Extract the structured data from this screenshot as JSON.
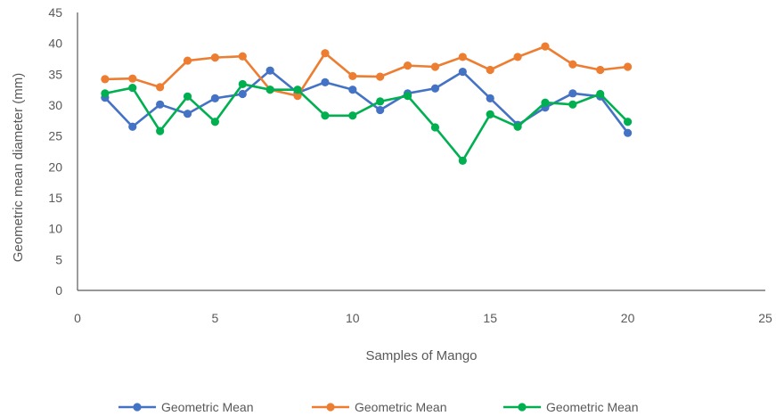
{
  "chart_data": {
    "type": "line",
    "title": "",
    "xlabel": "Samples of Mango",
    "ylabel": "Geometric mean diameter (mm)",
    "xlim": [
      0,
      25
    ],
    "ylim": [
      0,
      45
    ],
    "x_ticks": [
      0,
      5,
      10,
      15,
      20,
      25
    ],
    "y_ticks": [
      0,
      5,
      10,
      15,
      20,
      25,
      30,
      35,
      40,
      45
    ],
    "grid": false,
    "legend_position": "bottom",
    "x": [
      1,
      2,
      3,
      4,
      5,
      6,
      7,
      8,
      9,
      10,
      11,
      12,
      13,
      14,
      15,
      16,
      17,
      18,
      19,
      20
    ],
    "series": [
      {
        "name": "Geometric Mean",
        "color": "#4472C4",
        "values": [
          31.2,
          26.5,
          30.1,
          28.6,
          31.1,
          31.8,
          35.6,
          32.0,
          33.7,
          32.5,
          29.2,
          31.9,
          32.7,
          35.4,
          31.1,
          26.8,
          29.6,
          31.9,
          31.4,
          25.5
        ]
      },
      {
        "name": "Geometric Mean",
        "color": "#ED7D31",
        "values": [
          34.2,
          34.3,
          32.9,
          37.2,
          37.7,
          37.9,
          32.5,
          31.5,
          38.4,
          34.7,
          34.6,
          36.4,
          36.2,
          37.8,
          35.7,
          37.8,
          39.5,
          36.6,
          35.7,
          36.2
        ]
      },
      {
        "name": "Geometric Mean",
        "color": "#00B050",
        "values": [
          31.9,
          32.8,
          25.8,
          31.4,
          27.3,
          33.4,
          32.5,
          32.5,
          28.3,
          28.3,
          30.6,
          31.5,
          26.4,
          21.0,
          28.5,
          26.5,
          30.4,
          30.1,
          31.8,
          27.3
        ]
      }
    ]
  }
}
